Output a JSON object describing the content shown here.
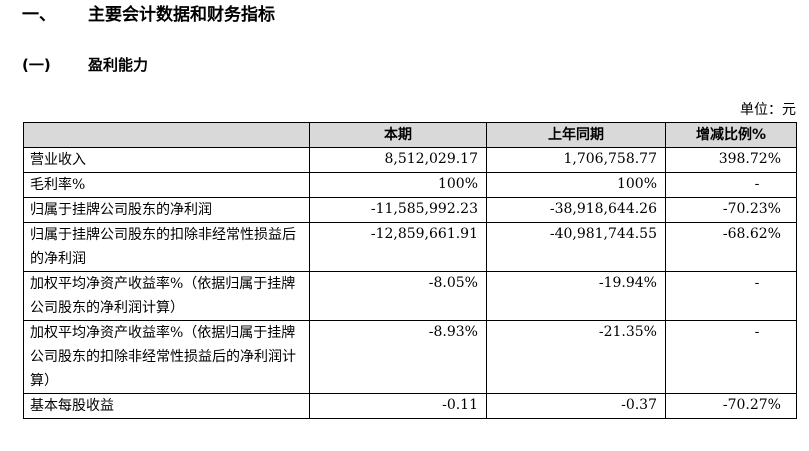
{
  "heading": {
    "number": "一、",
    "title": "主要会计数据和财务指标"
  },
  "subheading": {
    "number": "(一)",
    "title": "盈利能力"
  },
  "unit_label": "单位：元",
  "table": {
    "headers": [
      "",
      "本期",
      "上年同期",
      "增减比例%"
    ],
    "rows": [
      {
        "label": "营业收入",
        "current": "8,512,029.17",
        "previous": "1,706,758.77",
        "change": "398.72%"
      },
      {
        "label": "毛利率%",
        "current": "100%",
        "previous": "100%",
        "change": "-"
      },
      {
        "label": "归属于挂牌公司股东的净利润",
        "current": "-11,585,992.23",
        "previous": "-38,918,644.26",
        "change": "-70.23%"
      },
      {
        "label": "归属于挂牌公司股东的扣除非经常性损益后的净利润",
        "current": "-12,859,661.91",
        "previous": "-40,981,744.55",
        "change": "-68.62%"
      },
      {
        "label": "加权平均净资产收益率%（依据归属于挂牌公司股东的净利润计算）",
        "current": "-8.05%",
        "previous": "-19.94%",
        "change": "-"
      },
      {
        "label": "加权平均净资产收益率%（依据归属于挂牌公司股东的扣除非经常性损益后的净利润计算）",
        "current": "-8.93%",
        "previous": "-21.35%",
        "change": "-"
      },
      {
        "label": "基本每股收益",
        "current": "-0.11",
        "previous": "-0.37",
        "change": "-70.27%"
      }
    ]
  }
}
